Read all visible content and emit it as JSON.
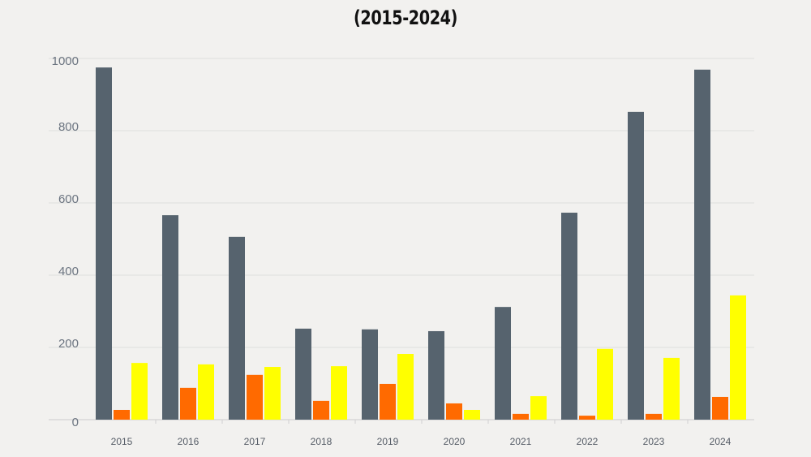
{
  "chart_data": {
    "type": "bar",
    "title": "(2015-2024)",
    "xlabel": "",
    "ylabel": "",
    "categories": [
      "2015",
      "2016",
      "2017",
      "2018",
      "2019",
      "2020",
      "2021",
      "2022",
      "2023",
      "2024"
    ],
    "ylim": [
      0,
      1000
    ],
    "yticks": [
      0,
      200,
      400,
      600,
      800,
      1000
    ],
    "grid": true,
    "legend": "none",
    "series": [
      {
        "color": "#56636e",
        "values": [
          975,
          566,
          506,
          252,
          250,
          245,
          312,
          573,
          852,
          969
        ]
      },
      {
        "color": "#ff6a00",
        "values": [
          27,
          88,
          124,
          52,
          99,
          45,
          16,
          11,
          16,
          63
        ]
      },
      {
        "color": "#ffff00",
        "values": [
          157,
          153,
          146,
          148,
          182,
          27,
          65,
          196,
          171,
          344
        ]
      }
    ]
  }
}
